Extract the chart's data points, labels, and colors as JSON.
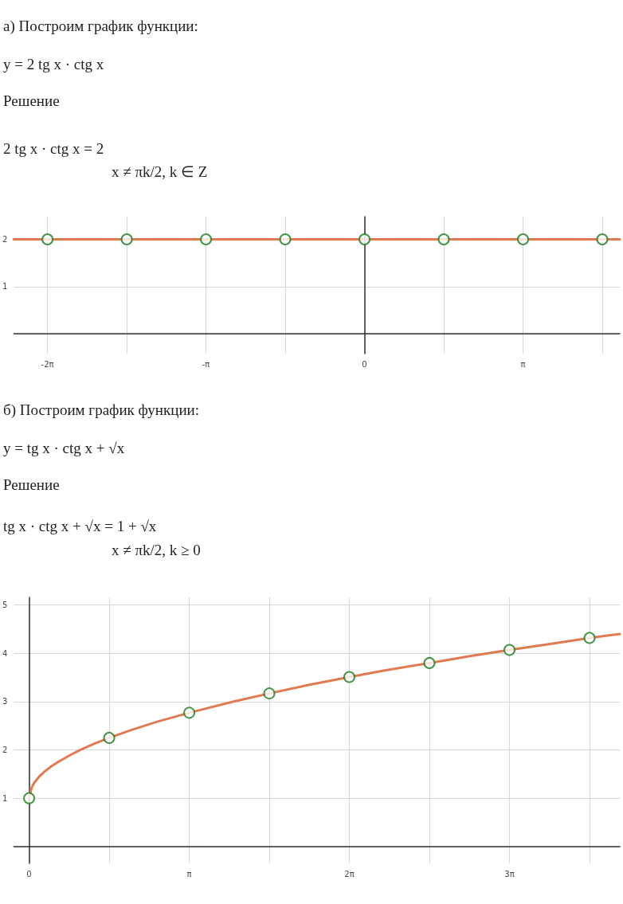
{
  "chart_data": [
    {
      "type": "line",
      "title": "а) Построим график функции:",
      "annotations": [
        "y = 2 tg x · ctg x",
        "Решение",
        "2 tg x · ctg x = 2",
        "x ≠ πk/2,  k ∈ Z"
      ],
      "xlim": [
        -6.95,
        5.06
      ],
      "ylim": [
        -0.42,
        2.48
      ],
      "xticks": [
        {
          "value": -6.283,
          "label": "-2π"
        },
        {
          "value": -4.712,
          "label": null
        },
        {
          "value": -3.142,
          "label": "-π"
        },
        {
          "value": -1.571,
          "label": null
        },
        {
          "value": 0,
          "label": "0"
        },
        {
          "value": 1.571,
          "label": null
        },
        {
          "value": 3.142,
          "label": "π"
        },
        {
          "value": 4.712,
          "label": null
        }
      ],
      "yticks": [
        {
          "value": 0,
          "label": null
        },
        1,
        2
      ],
      "grid": true,
      "marker": "none",
      "line_style": "solid",
      "series": [
        {
          "type": "line",
          "color": "#e07a50",
          "x": [
            -6.95,
            5.06
          ],
          "values": [
            2,
            2
          ]
        },
        {
          "type": "scatter",
          "color": "#1a7a1a",
          "marker": "circle",
          "x": [
            -6.283,
            -4.712,
            -3.142,
            -1.571,
            0,
            1.571,
            3.142,
            4.712
          ],
          "values": [
            2,
            2,
            2,
            2,
            2,
            2,
            2,
            2
          ]
        }
      ]
    },
    {
      "type": "line",
      "title": "б) Построим график функции:",
      "annotations": [
        "y = tg x · ctg x + √x",
        "Решение",
        "tg x · ctg x + √x = 1 + √x",
        "x ≠ πk/2,  k ≥ 0"
      ],
      "xlim": [
        -0.3,
        11.59
      ],
      "ylim": [
        -0.35,
        5.16
      ],
      "xticks": [
        {
          "value": 0,
          "label": "0"
        },
        {
          "value": 1.571,
          "label": null
        },
        {
          "value": 3.142,
          "label": "π"
        },
        {
          "value": 4.712,
          "label": null
        },
        {
          "value": 6.283,
          "label": "2π"
        },
        {
          "value": 7.854,
          "label": null
        },
        {
          "value": 9.425,
          "label": "3π"
        },
        {
          "value": 10.996,
          "label": null
        }
      ],
      "yticks": [
        {
          "value": 0,
          "label": null
        },
        1,
        2,
        3,
        4,
        5
      ],
      "grid": true,
      "marker": "none",
      "line_style": "solid",
      "series": [
        {
          "type": "line",
          "color": "#e07a50",
          "x": [
            0,
            0.05,
            0.1,
            0.2,
            0.3,
            0.45,
            0.6,
            0.8,
            1,
            1.3,
            1.571,
            2,
            2.5,
            3.142,
            4,
            4.712,
            5.5,
            6.283,
            7,
            7.854,
            8.7,
            9.425,
            10.2,
            10.996,
            11.59
          ],
          "values": [
            1,
            1.22,
            1.32,
            1.45,
            1.55,
            1.67,
            1.77,
            1.89,
            2,
            2.14,
            2.25,
            2.41,
            2.58,
            2.77,
            3,
            3.17,
            3.35,
            3.51,
            3.65,
            3.8,
            3.95,
            4.07,
            4.19,
            4.32,
            4.4
          ]
        },
        {
          "type": "scatter",
          "color": "#1a7a1a",
          "marker": "circle",
          "x": [
            0,
            1.571,
            3.142,
            4.712,
            6.283,
            7.854,
            9.425,
            10.996
          ],
          "values": [
            1,
            2.25,
            2.77,
            3.17,
            3.51,
            3.8,
            4.07,
            4.32
          ]
        }
      ]
    }
  ]
}
